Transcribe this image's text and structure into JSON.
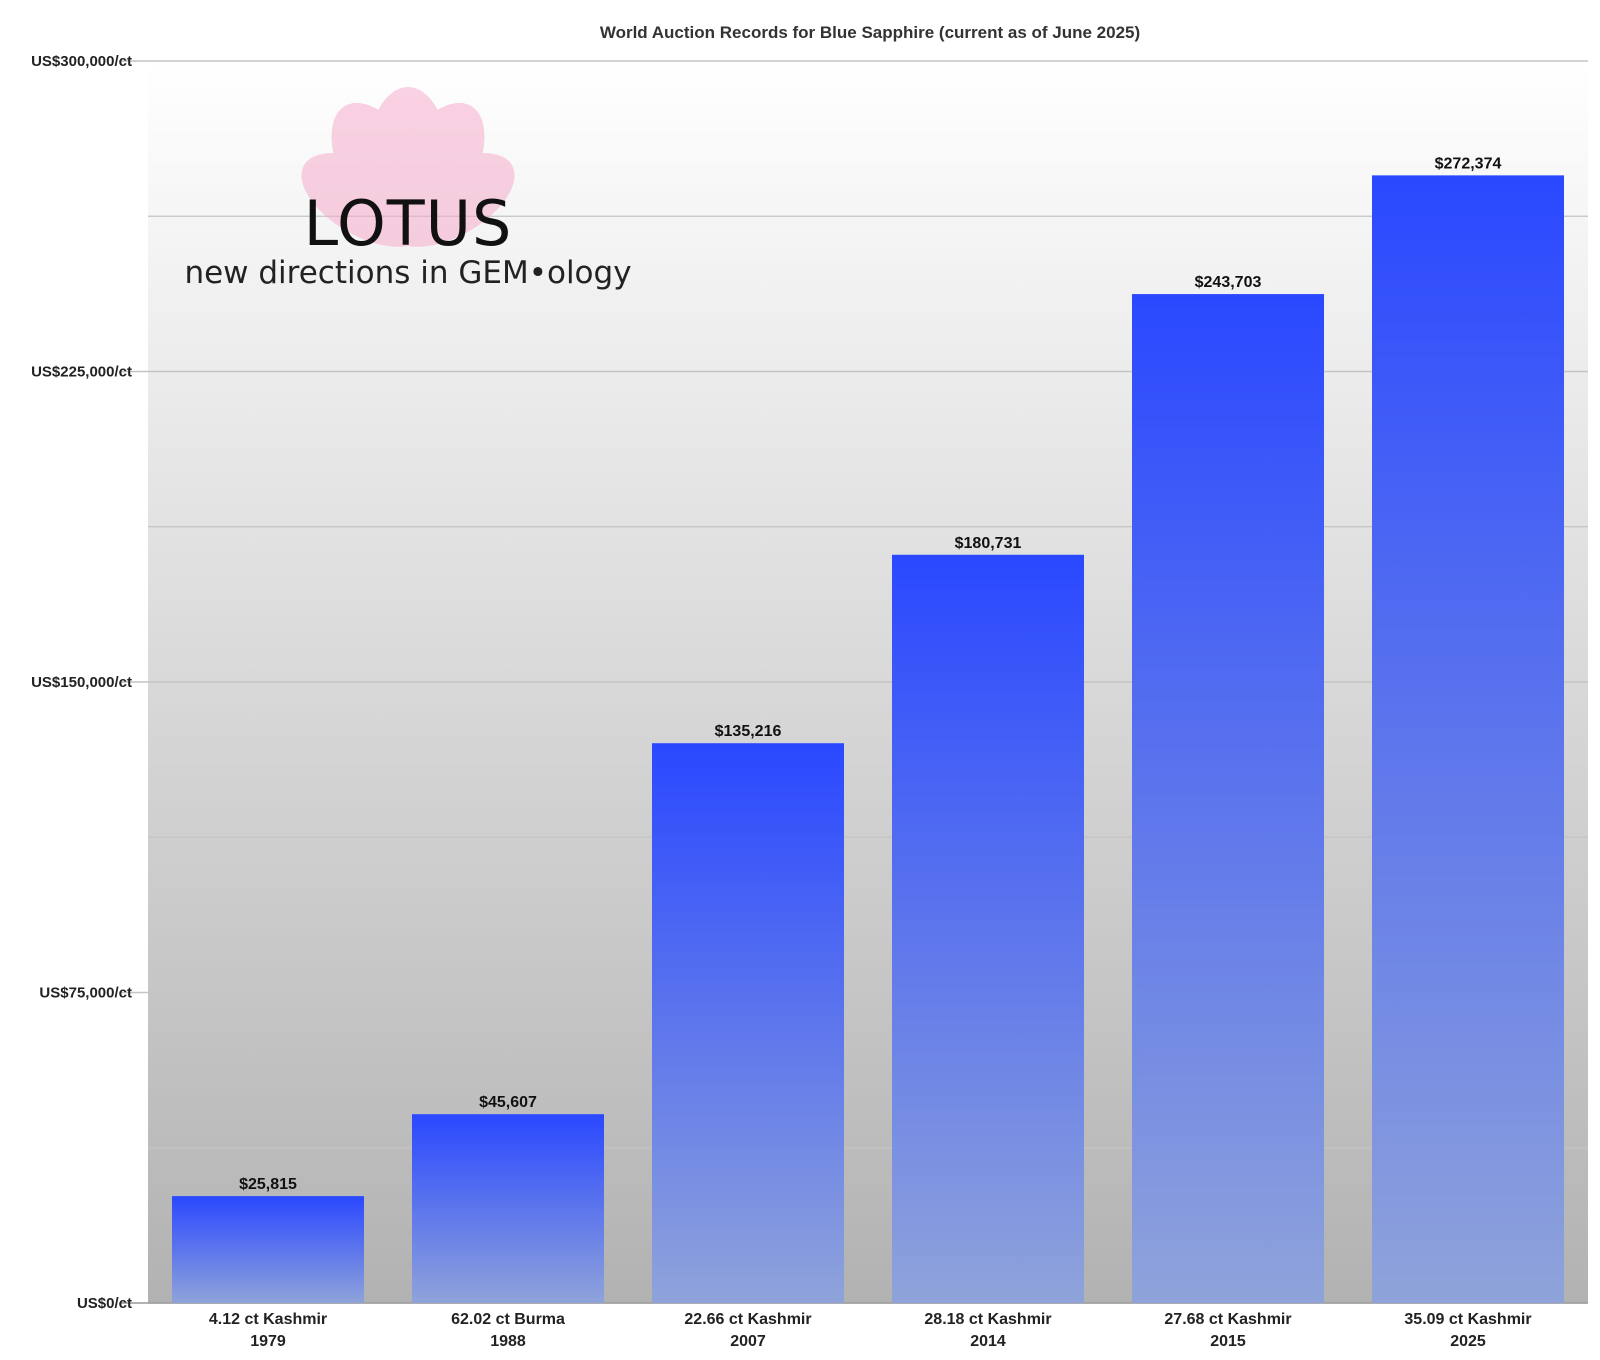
{
  "chart_data": {
    "type": "bar",
    "title": "World Auction Records for Blue Sapphire (current as of June 2025)",
    "xlabel": "",
    "ylabel": "",
    "ylim": [
      0,
      300000
    ],
    "yticks": [
      0,
      75000,
      150000,
      225000,
      300000
    ],
    "ytick_labels": [
      "US$0/ct",
      "US$75,000/ct",
      "US$150,000/ct",
      "US$225,000/ct",
      "US$300,000/ct"
    ],
    "minor_gridlines": [
      37500,
      112500,
      187500,
      262500
    ],
    "grid": true,
    "legend": "none",
    "categories": [
      [
        "4.12 ct Kashmir",
        "1979"
      ],
      [
        "62.02 ct Burma",
        "1988"
      ],
      [
        "22.66 ct Kashmir",
        "2007"
      ],
      [
        "28.18 ct Kashmir",
        "2014"
      ],
      [
        "27.68 ct Kashmir",
        "2015"
      ],
      [
        "35.09 ct Kashmir",
        "2025"
      ]
    ],
    "values": [
      25815,
      45607,
      135216,
      180731,
      243703,
      272374
    ],
    "data_labels": [
      "$25,815",
      "$45,607",
      "$135,216",
      "$180,731",
      "$243,703",
      "$272,374"
    ]
  },
  "logo": {
    "wordmark": "LOTUS",
    "tagline": "new directions in GEM•ology"
  },
  "colors": {
    "bar_top": "#2a48ff",
    "bar_bottom": "#8fa3da",
    "background_top": "#ffffff",
    "background_bottom": "#b2b2b2",
    "gridline": "#c4c4c4",
    "petal": "#f5a6c8"
  }
}
